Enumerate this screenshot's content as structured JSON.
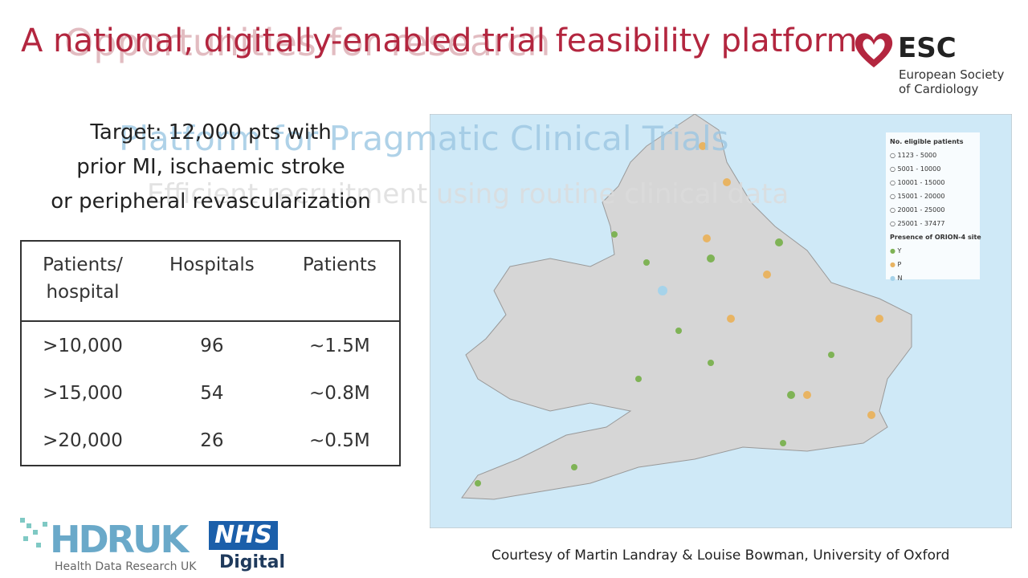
{
  "header": {
    "title": "A national, digitally-enabled trial feasibility platform",
    "ghost_title": "Opportunities for research",
    "ghost_subtitle": "Platform for Pragmatic Clinical Trials",
    "ghost_tagline": "Efficient recruitment using routine clinical data"
  },
  "logo": {
    "name": "ESC",
    "full_name_line1": "European Society",
    "full_name_line2": "of Cardiology"
  },
  "target": {
    "line1": "Target: 12,000 pts with",
    "line2": "prior MI, ischaemic stroke",
    "line3": "or peripheral revascularization"
  },
  "table": {
    "header": [
      "Patients/ hospital",
      "Hospitals",
      "Patients"
    ],
    "rows": [
      [
        ">10,000",
        "96",
        "~1.5M"
      ],
      [
        ">15,000",
        "54",
        "~0.8M"
      ],
      [
        ">20,000",
        "26",
        "~0.5M"
      ]
    ]
  },
  "map_legend": {
    "size_title": "No. eligible patients",
    "size_bins": [
      "1123 - 5000",
      "5001 - 10000",
      "10001 - 15000",
      "15001 - 20000",
      "20001 - 25000",
      "25001 - 37477"
    ],
    "site_title": "Presence of ORION-4 site",
    "sites": [
      "Y",
      "P",
      "N"
    ]
  },
  "footer": {
    "hdr": "HDRUK",
    "hdr_full": "Health Data Research UK",
    "nhs": "NHS",
    "nhs_sub": "Digital",
    "credit": "Courtesy of Martin Landray & Louise Bowman, University of Oxford"
  }
}
